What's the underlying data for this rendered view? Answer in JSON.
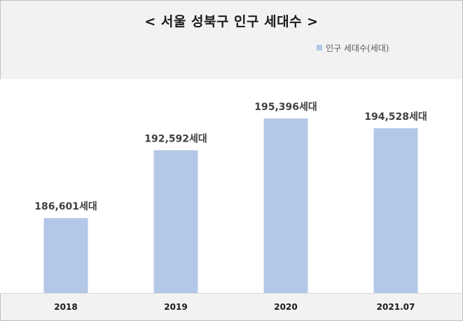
{
  "colors": {
    "bar": "#b4c7e7",
    "plot_background": "#ffffff",
    "page_background": "#f2f2f2"
  },
  "chart_data": {
    "type": "bar",
    "title": "< 서울 성북구 인구 세대수 >",
    "legend": {
      "position": "top-right"
    },
    "categories": [
      "2018",
      "2019",
      "2020",
      "2021.07"
    ],
    "series": [
      {
        "name": "인구 세대수(세대)",
        "values": [
          186601,
          192592,
          195396,
          194528
        ],
        "labels": [
          "186,601세대",
          "192,592세대",
          "195,396세대",
          "194,528세대"
        ]
      }
    ],
    "ylim": [
      180000,
      197000
    ],
    "grid": false
  }
}
